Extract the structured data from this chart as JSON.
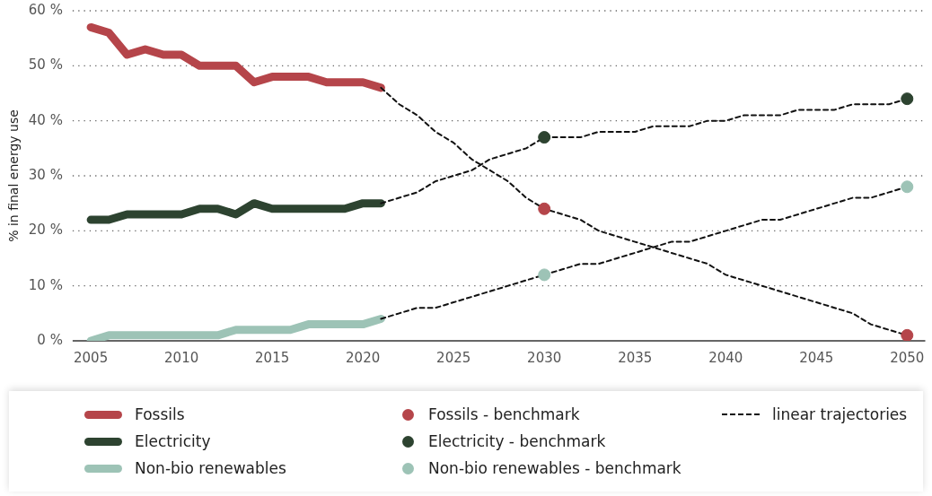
{
  "chart_data": {
    "type": "line",
    "ylabel": "% in final energy use",
    "xlim": [
      2004,
      2051
    ],
    "xticks": [
      2005,
      2010,
      2015,
      2020,
      2025,
      2030,
      2035,
      2040,
      2045,
      2050
    ],
    "ylim": [
      0,
      60
    ],
    "yticks": [
      {
        "value": 0,
        "label": "0 %"
      },
      {
        "value": 10,
        "label": "10 %"
      },
      {
        "value": 20,
        "label": "20 %"
      },
      {
        "value": 30,
        "label": "30 %"
      },
      {
        "value": 40,
        "label": "40 %"
      },
      {
        "value": 50,
        "label": "50 %"
      },
      {
        "value": 60,
        "label": "60 %"
      }
    ],
    "grid": "y",
    "legend": "bottom",
    "series": [
      {
        "name": "Fossils",
        "color": "#b5454a",
        "marker": "none",
        "line_style": "solid",
        "x": [
          2005,
          2006,
          2007,
          2008,
          2009,
          2010,
          2011,
          2012,
          2013,
          2014,
          2015,
          2016,
          2017,
          2018,
          2019,
          2020,
          2021
        ],
        "values": [
          57,
          56,
          52,
          53,
          52,
          52,
          50,
          50,
          50,
          47,
          48,
          48,
          48,
          47,
          47,
          47,
          46
        ]
      },
      {
        "name": "Electricity",
        "color": "#2d4330",
        "marker": "none",
        "line_style": "solid",
        "x": [
          2005,
          2006,
          2007,
          2008,
          2009,
          2010,
          2011,
          2012,
          2013,
          2014,
          2015,
          2016,
          2017,
          2018,
          2019,
          2020,
          2021
        ],
        "values": [
          22,
          22,
          23,
          23,
          23,
          23,
          24,
          24,
          23,
          25,
          24,
          24,
          24,
          24,
          24,
          25,
          25
        ]
      },
      {
        "name": "Non-bio renewables",
        "color": "#9dc3b6",
        "marker": "none",
        "line_style": "solid",
        "x": [
          2005,
          2006,
          2007,
          2008,
          2009,
          2010,
          2011,
          2012,
          2013,
          2014,
          2015,
          2016,
          2017,
          2018,
          2019,
          2020,
          2021
        ],
        "values": [
          0,
          1,
          1,
          1,
          1,
          1,
          1,
          1,
          2,
          2,
          2,
          2,
          3,
          3,
          3,
          3,
          4
        ]
      },
      {
        "name": "Fossils - benchmark",
        "type": "scatter",
        "color": "#b5454a",
        "marker": "circle",
        "x": [
          2030,
          2050
        ],
        "values": [
          24,
          1
        ]
      },
      {
        "name": "Electricity - benchmark",
        "type": "scatter",
        "color": "#2d4330",
        "marker": "circle",
        "x": [
          2030,
          2050
        ],
        "values": [
          37,
          44
        ]
      },
      {
        "name": "Non-bio renewables - benchmark",
        "type": "scatter",
        "color": "#9dc3b6",
        "marker": "circle",
        "x": [
          2030,
          2050
        ],
        "values": [
          12,
          28
        ]
      },
      {
        "name": "linear trajectories",
        "color": "#111111",
        "marker": "none",
        "line_style": "dashed",
        "x": [
          2021,
          2022,
          2023,
          2024,
          2025,
          2026,
          2027,
          2028,
          2029,
          2030,
          2031,
          2032,
          2033,
          2034,
          2035,
          2036,
          2037,
          2038,
          2039,
          2040,
          2041,
          2042,
          2043,
          2044,
          2045,
          2046,
          2047,
          2048,
          2049,
          2050
        ],
        "values": [
          46,
          43,
          41,
          38,
          36,
          33,
          31,
          29,
          26,
          24,
          23,
          22,
          20,
          19,
          18,
          17,
          16,
          15,
          14,
          12,
          11,
          10,
          9,
          8,
          7,
          6,
          5,
          3,
          2,
          1
        ]
      },
      {
        "color": "#111111",
        "marker": "none",
        "line_style": "dashed",
        "x": [
          2021,
          2022,
          2023,
          2024,
          2025,
          2026,
          2027,
          2028,
          2029,
          2030,
          2031,
          2032,
          2033,
          2034,
          2035,
          2036,
          2037,
          2038,
          2039,
          2040,
          2041,
          2042,
          2043,
          2044,
          2045,
          2046,
          2047,
          2048,
          2049,
          2050
        ],
        "values": [
          25,
          26,
          27,
          29,
          30,
          31,
          33,
          34,
          35,
          37,
          37,
          37,
          38,
          38,
          38,
          39,
          39,
          39,
          40,
          40,
          41,
          41,
          41,
          42,
          42,
          42,
          43,
          43,
          43,
          44
        ]
      },
      {
        "color": "#111111",
        "marker": "none",
        "line_style": "dashed",
        "x": [
          2021,
          2022,
          2023,
          2024,
          2025,
          2026,
          2027,
          2028,
          2029,
          2030,
          2031,
          2032,
          2033,
          2034,
          2035,
          2036,
          2037,
          2038,
          2039,
          2040,
          2041,
          2042,
          2043,
          2044,
          2045,
          2046,
          2047,
          2048,
          2049,
          2050
        ],
        "values": [
          4,
          5,
          6,
          6,
          7,
          8,
          9,
          10,
          11,
          12,
          13,
          14,
          14,
          15,
          16,
          17,
          18,
          18,
          19,
          20,
          21,
          22,
          22,
          23,
          24,
          25,
          26,
          26,
          27,
          28
        ]
      }
    ]
  }
}
